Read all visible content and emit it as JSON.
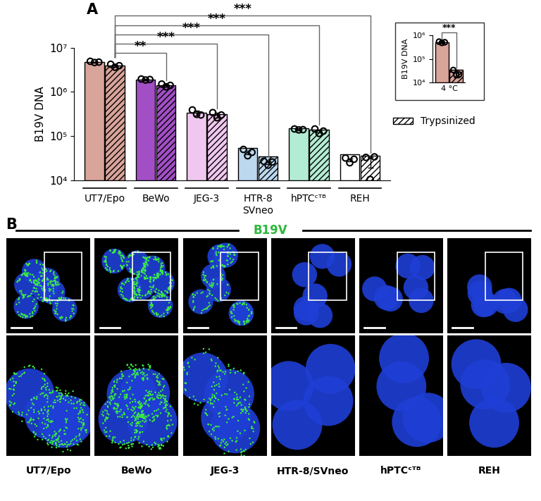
{
  "panel_labels": [
    "A",
    "B"
  ],
  "chart_data": [
    {
      "type": "bar",
      "y_label": "B19V DNA",
      "categories": [
        "UT7/Epo",
        "BeWo",
        "JEG-3",
        "HTR-8\nSVneo",
        "hPTCᶜᵀᴮ",
        "REH"
      ],
      "colors": [
        "#d9a49a",
        "#a24fc5",
        "#f0c8ef",
        "#bcd8ef",
        "#b3ecd4",
        "#ffffff"
      ],
      "log": "y",
      "ylim": [
        10000,
        10000000
      ],
      "yticks": [
        {
          "value": 10000,
          "label": "10⁴"
        },
        {
          "value": 100000,
          "label": "10⁵"
        },
        {
          "value": 1000000,
          "label": "10⁶"
        },
        {
          "value": 10000000,
          "label": "10⁷"
        }
      ],
      "legend": "upper right",
      "series": [
        {
          "values": [
            4700000,
            1900000,
            330000,
            43000,
            140000,
            29000
          ],
          "errors": [
            100000,
            50000,
            40000,
            4000,
            6000,
            2000
          ],
          "points": [
            [
              4900000,
              4600000,
              4700000
            ],
            [
              1950000,
              1850000,
              1900000
            ],
            [
              390000,
              310000,
              300000
            ],
            [
              50000,
              36000,
              43000
            ],
            [
              145000,
              138000,
              140000
            ],
            [
              32000,
              25000,
              30000
            ]
          ]
        },
        {
          "name": "Trypsinized",
          "values": [
            3900000,
            1400000,
            300000,
            25000,
            130000,
            26000
          ],
          "errors": [
            250000,
            80000,
            40000,
            2000,
            9000,
            7000
          ],
          "points": [
            [
              4200000,
              3600000,
              3900000
            ],
            [
              1500000,
              1300000,
              1400000
            ],
            [
              340000,
              260000,
              300000
            ],
            [
              27000,
              22000,
              26000
            ],
            [
              145000,
              115000,
              130000
            ],
            [
              33000,
              10500,
              34000
            ]
          ]
        }
      ],
      "comparisons": [
        {
          "from": "UT7/Epo",
          "to": "BeWo",
          "label": "**"
        },
        {
          "from": "UT7/Epo",
          "to": "JEG-3",
          "label": "***"
        },
        {
          "from": "UT7/Epo",
          "to": "HTR-8\nSVneo",
          "label": "***"
        },
        {
          "from": "UT7/Epo",
          "to": "hPTCᶜᵀᴮ",
          "label": "***"
        },
        {
          "from": "UT7/Epo",
          "to": "REH",
          "label": "***"
        }
      ]
    },
    {
      "type": "bar",
      "y_label": "B19V DNA",
      "categories": [
        "4 °C"
      ],
      "color": "#d9a49a",
      "log": "y",
      "ylim": [
        10000,
        1000000
      ],
      "yticks": [
        {
          "value": 10000,
          "label": "10⁴"
        },
        {
          "value": 100000,
          "label": "10⁵"
        },
        {
          "value": 1000000,
          "label": "10⁶"
        }
      ],
      "series": [
        {
          "values": [
            500000
          ],
          "errors": [
            30000
          ],
          "points": [
            [
              530000,
              470000,
              500000
            ]
          ]
        },
        {
          "name": "Trypsinized",
          "values": [
            26000
          ],
          "errors": [
            9000
          ],
          "points": [
            [
              34000,
              22000,
              22000
            ]
          ]
        }
      ],
      "comparisons": [
        {
          "from": "4 °C",
          "to": "4 °C",
          "label": "***"
        }
      ]
    }
  ],
  "panel_b": {
    "title": "B19V",
    "color": "#2db83d",
    "labels": [
      "UT7/Epo",
      "BeWo",
      "JEG-3",
      "HTR-8/SVneo",
      "hPTCᶜᵀᴮ",
      "REH"
    ]
  }
}
